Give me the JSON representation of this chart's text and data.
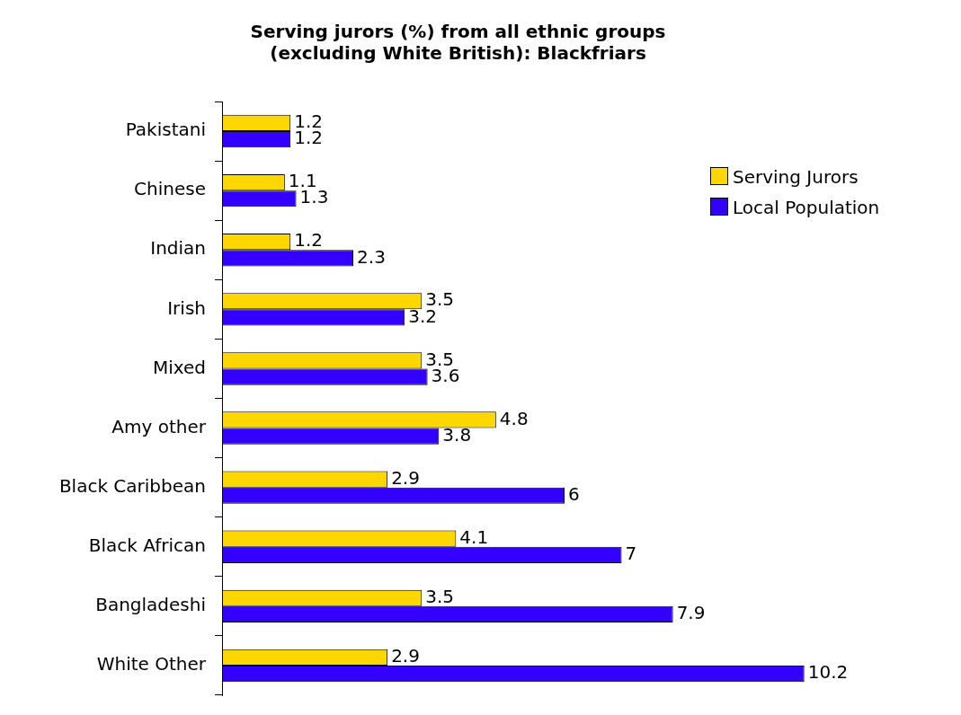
{
  "chart_data": {
    "type": "bar",
    "orientation": "horizontal",
    "title": "Serving jurors (%) from all ethnic groups\n(excluding White British): Blackfriars",
    "categories": [
      "Pakistani",
      "Chinese",
      "Indian",
      "Irish",
      "Mixed",
      "Amy other",
      "Black Caribbean",
      "Black African",
      "Bangladeshi",
      "White Other"
    ],
    "series": [
      {
        "name": "Serving Jurors",
        "color": "#ffd700",
        "values": [
          1.2,
          1.1,
          1.2,
          3.5,
          3.5,
          4.8,
          2.9,
          4.1,
          3.5,
          2.9
        ]
      },
      {
        "name": "Local Population",
        "color": "#3300ff",
        "values": [
          1.2,
          1.3,
          2.3,
          3.2,
          3.6,
          3.8,
          6,
          7,
          7.9,
          10.2
        ]
      }
    ],
    "tick_labels": "y",
    "data_labels": true,
    "grid": false,
    "legend": "top right"
  }
}
